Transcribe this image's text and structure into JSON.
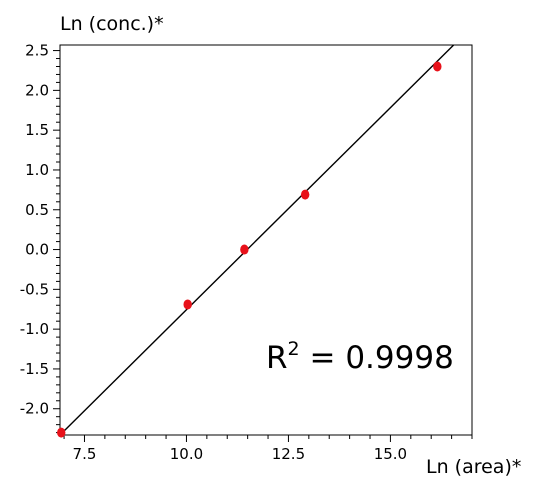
{
  "chart_data": {
    "type": "scatter",
    "title": "",
    "xlabel": "Ln (area)*",
    "ylabel": "Ln (conc.)*",
    "xlim": [
      6.9,
      17.0
    ],
    "ylim": [
      -2.33,
      2.57
    ],
    "x_ticks": [
      7.5,
      10.0,
      12.5,
      15.0
    ],
    "x_tick_labels": [
      "7.5",
      "10.0",
      "12.5",
      "15.0"
    ],
    "y_ticks": [
      2.5,
      2.0,
      1.5,
      1.0,
      0.5,
      0.0,
      -0.5,
      -1.0,
      -1.5,
      -2.0
    ],
    "y_tick_labels": [
      "2.5",
      "2.0",
      "1.5",
      "1.0",
      "0.5",
      "0.0",
      "-0.5",
      "-1.0",
      "-1.5",
      "-2.0"
    ],
    "grid": false,
    "series": [
      {
        "color": "#e8111a",
        "points": [
          {
            "x": 6.93,
            "y": -2.3
          },
          {
            "x": 10.03,
            "y": -0.69
          },
          {
            "x": 11.42,
            "y": 0.0
          },
          {
            "x": 12.91,
            "y": 0.69
          },
          {
            "x": 16.15,
            "y": 2.3
          }
        ]
      }
    ],
    "fit_line": {
      "color": "#000000",
      "x": [
        6.9,
        16.55
      ],
      "y": [
        -2.33,
        2.57
      ]
    },
    "annotation": {
      "prefix": "R",
      "superscript": "2",
      "suffix": " = 0.9998"
    }
  }
}
